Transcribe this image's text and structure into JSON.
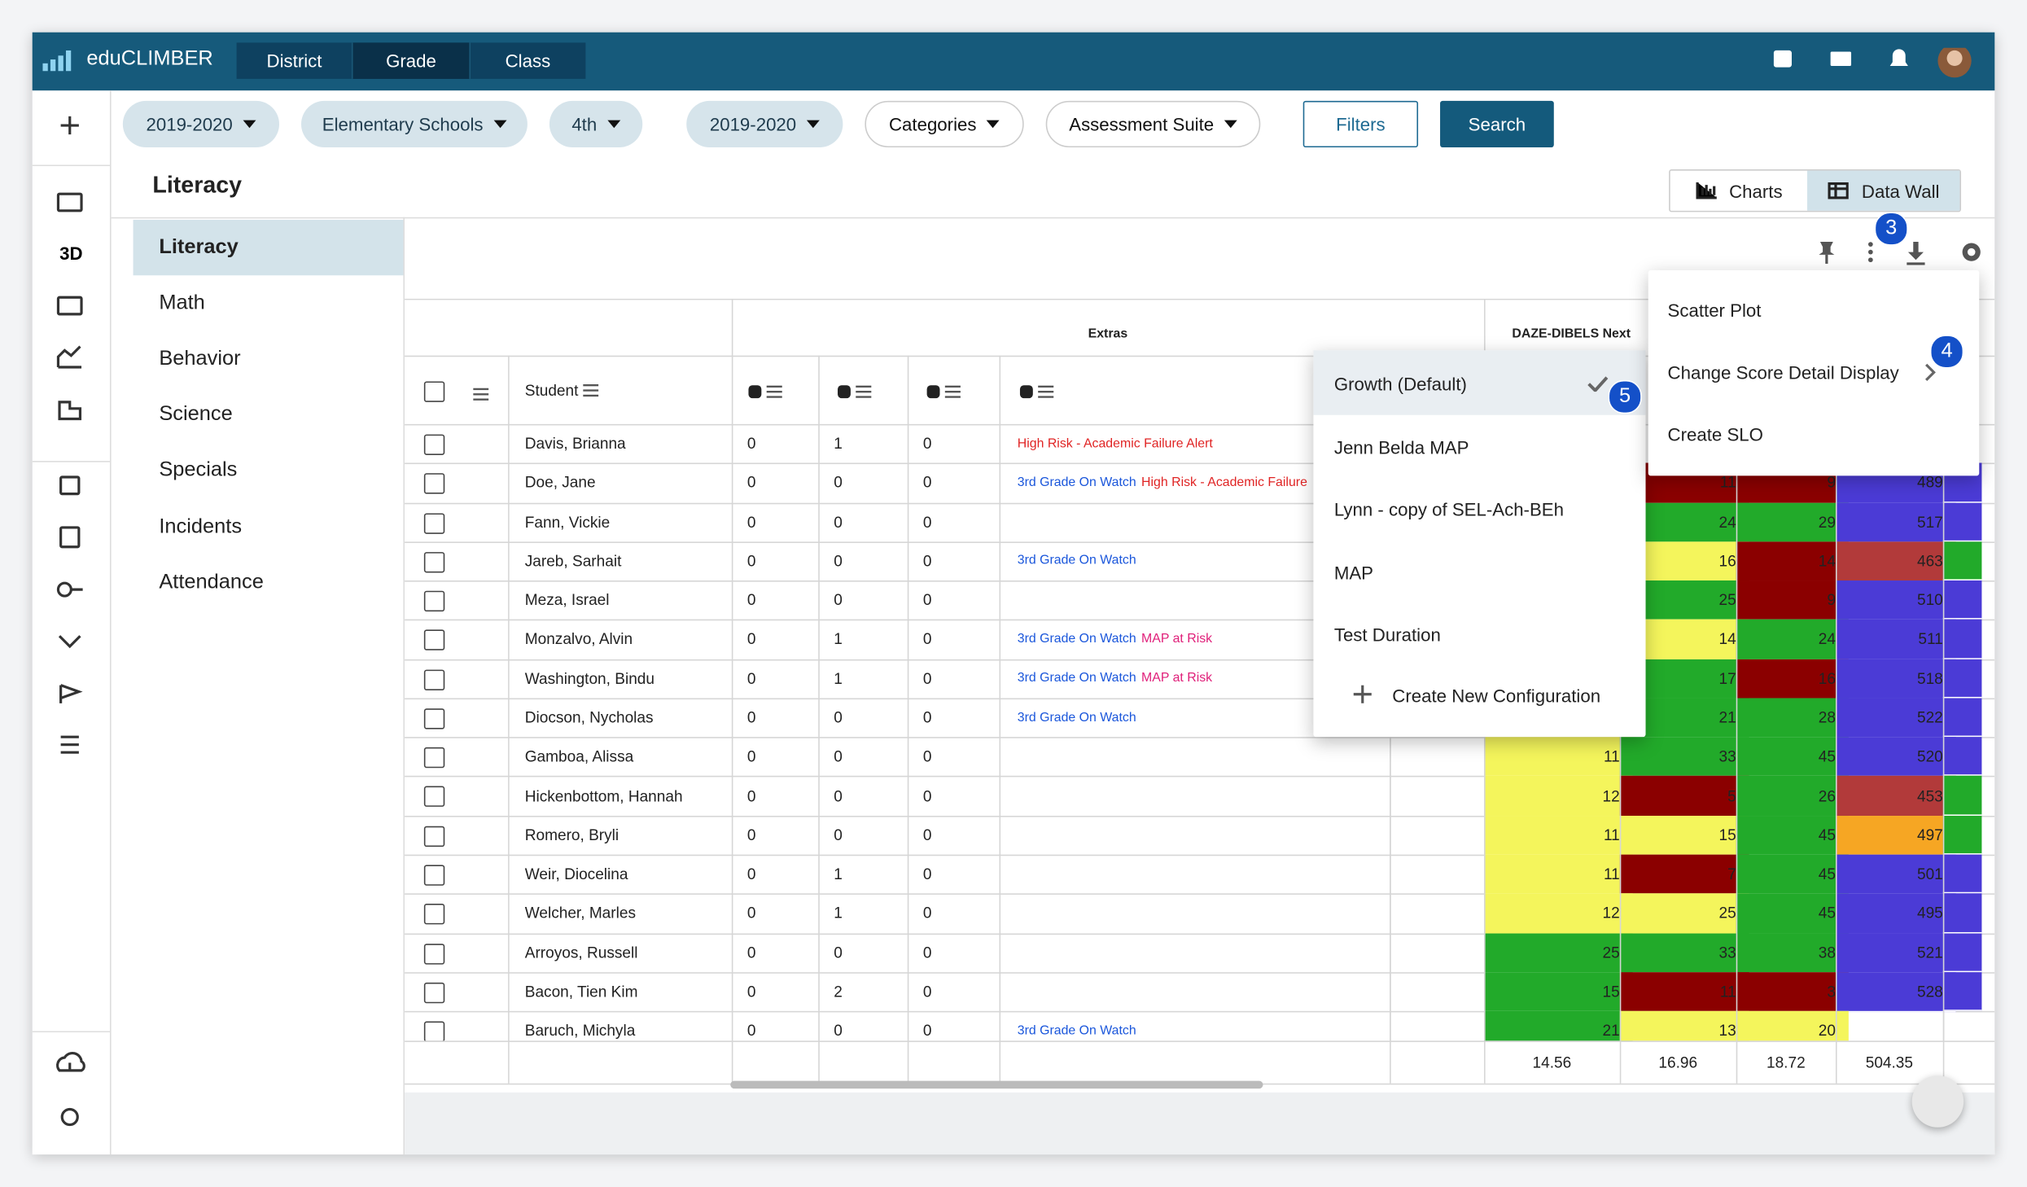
{
  "nav": {
    "brand": "eduCLIMBER",
    "tabs": [
      "District",
      "Grade",
      "Class"
    ],
    "active_tab": 1
  },
  "sidebar": {
    "label_3d": "3D"
  },
  "filters": {
    "dropdowns": [
      "2019-2020",
      "Elementary Schools",
      "4th",
      "2019-2020",
      "Categories",
      "Assessment Suite"
    ],
    "filters_button": "Filters",
    "search_button": "Search"
  },
  "page": {
    "title": "Literacy",
    "views": [
      "Charts",
      "Data Wall"
    ],
    "active_view": 1
  },
  "subjects": {
    "items": [
      "Literacy",
      "Math",
      "Behavior",
      "Science",
      "Specials",
      "Incidents",
      "Attendance"
    ],
    "active": 0
  },
  "table": {
    "groups": [
      "Extras",
      "DAZE-DIBELS Next"
    ],
    "student_header": "Student",
    "rows": [
      {
        "student": "Davis, Brianna",
        "extras": [
          0,
          1,
          0
        ],
        "tags": [
          {
            "text": "High Risk - Academic Failure Alert",
            "color": "#e02424"
          }
        ],
        "scores": [
          null,
          null,
          null,
          null
        ]
      },
      {
        "student": "Doe, Jane",
        "extras": [
          0,
          0,
          0
        ],
        "tags": [
          {
            "text": "3rd Grade On Watch",
            "color": "#1a56db"
          },
          {
            "text": "High Risk - Academic Failure",
            "color": "#e02424"
          }
        ],
        "scores": [
          null,
          {
            "value": 11,
            "color": "#8b0000"
          },
          {
            "value": 9,
            "color": "#8b0000"
          },
          {
            "value": 489,
            "color": "#4b3bd6"
          }
        ]
      },
      {
        "student": "Fann, Vickie",
        "extras": [
          0,
          0,
          0
        ],
        "tags": [],
        "scores": [
          null,
          {
            "value": 24,
            "color": "#22aa2a"
          },
          {
            "value": 29,
            "color": "#22aa2a"
          },
          {
            "value": 517,
            "color": "#4b3bd6"
          }
        ]
      },
      {
        "student": "Jareb, Sarhait",
        "extras": [
          0,
          0,
          0
        ],
        "tags": [
          {
            "text": "3rd Grade On Watch",
            "color": "#1a56db"
          }
        ],
        "scores": [
          null,
          {
            "value": 16,
            "color": "#f4f55c"
          },
          {
            "value": 14,
            "color": "#8b0000"
          },
          {
            "value": 463,
            "color": "#b23a3a"
          }
        ]
      },
      {
        "student": "Meza, Israel",
        "extras": [
          0,
          0,
          0
        ],
        "tags": [],
        "scores": [
          null,
          {
            "value": 25,
            "color": "#22aa2a"
          },
          {
            "value": 9,
            "color": "#8b0000"
          },
          {
            "value": 510,
            "color": "#4b3bd6"
          }
        ]
      },
      {
        "student": "Monzalvo, Alvin",
        "extras": [
          0,
          1,
          0
        ],
        "tags": [
          {
            "text": "3rd Grade On Watch",
            "color": "#1a56db"
          },
          {
            "text": "MAP at Risk",
            "color": "#e0207a"
          }
        ],
        "scores": [
          null,
          {
            "value": 14,
            "color": "#f4f55c"
          },
          {
            "value": 24,
            "color": "#22aa2a"
          },
          {
            "value": 511,
            "color": "#4b3bd6"
          }
        ]
      },
      {
        "student": "Washington, Bindu",
        "extras": [
          0,
          1,
          0
        ],
        "tags": [
          {
            "text": "3rd Grade On Watch",
            "color": "#1a56db"
          },
          {
            "text": "MAP at Risk",
            "color": "#e0207a"
          }
        ],
        "scores": [
          null,
          {
            "value": 17,
            "color": "#22aa2a"
          },
          {
            "value": 16,
            "color": "#8b0000"
          },
          {
            "value": 518,
            "color": "#4b3bd6"
          }
        ]
      },
      {
        "student": "Diocson, Nycholas",
        "extras": [
          0,
          0,
          0
        ],
        "tags": [
          {
            "text": "3rd Grade On Watch",
            "color": "#1a56db"
          }
        ],
        "scores": [
          null,
          {
            "value": 21,
            "color": "#22aa2a"
          },
          {
            "value": 28,
            "color": "#22aa2a"
          },
          {
            "value": 522,
            "color": "#4b3bd6"
          }
        ]
      },
      {
        "student": "Gamboa, Alissa",
        "extras": [
          0,
          0,
          0
        ],
        "tags": [],
        "scores": [
          {
            "value": 11,
            "color": "#f4f55c"
          },
          {
            "value": 33,
            "color": "#22aa2a"
          },
          {
            "value": 45,
            "color": "#22aa2a"
          },
          {
            "value": 520,
            "color": "#4b3bd6"
          }
        ]
      },
      {
        "student": "Hickenbottom, Hannah",
        "extras": [
          0,
          0,
          0
        ],
        "tags": [],
        "scores": [
          {
            "value": 12,
            "color": "#f4f55c"
          },
          {
            "value": 5,
            "color": "#8b0000"
          },
          {
            "value": 26,
            "color": "#22aa2a"
          },
          {
            "value": 453,
            "color": "#b23a3a"
          }
        ]
      },
      {
        "student": "Romero, Bryli",
        "extras": [
          0,
          0,
          0
        ],
        "tags": [],
        "scores": [
          {
            "value": 11,
            "color": "#f4f55c"
          },
          {
            "value": 15,
            "color": "#f4f55c"
          },
          {
            "value": 45,
            "color": "#22aa2a"
          },
          {
            "value": 497,
            "color": "#f6a623"
          }
        ]
      },
      {
        "student": "Weir, Diocelina",
        "extras": [
          0,
          1,
          0
        ],
        "tags": [],
        "scores": [
          {
            "value": 11,
            "color": "#f4f55c"
          },
          {
            "value": 7,
            "color": "#8b0000"
          },
          {
            "value": 45,
            "color": "#22aa2a"
          },
          {
            "value": 501,
            "color": "#4b3bd6"
          }
        ]
      },
      {
        "student": "Welcher, Marles",
        "extras": [
          0,
          1,
          0
        ],
        "tags": [],
        "scores": [
          {
            "value": 12,
            "color": "#f4f55c"
          },
          {
            "value": 25,
            "color": "#f4f55c"
          },
          {
            "value": 45,
            "color": "#22aa2a"
          },
          {
            "value": 495,
            "color": "#4b3bd6"
          }
        ]
      },
      {
        "student": "Arroyos, Russell",
        "extras": [
          0,
          0,
          0
        ],
        "tags": [],
        "scores": [
          {
            "value": 25,
            "color": "#22aa2a"
          },
          {
            "value": 33,
            "color": "#22aa2a"
          },
          {
            "value": 38,
            "color": "#22aa2a"
          },
          {
            "value": 521,
            "color": "#4b3bd6"
          }
        ]
      },
      {
        "student": "Bacon, Tien Kim",
        "extras": [
          0,
          2,
          0
        ],
        "tags": [],
        "scores": [
          {
            "value": 15,
            "color": "#22aa2a"
          },
          {
            "value": 11,
            "color": "#8b0000"
          },
          {
            "value": 3,
            "color": "#8b0000"
          },
          {
            "value": 528,
            "color": "#4b3bd6"
          }
        ]
      },
      {
        "student": "Baruch, Michyla",
        "extras": [
          0,
          0,
          0
        ],
        "tags": [
          {
            "text": "3rd Grade On Watch",
            "color": "#1a56db"
          }
        ],
        "scores": [
          {
            "value": 21,
            "color": "#22aa2a"
          },
          {
            "value": 13,
            "color": "#f4f55c"
          },
          {
            "value": 20,
            "color": "#f4f55c"
          },
          null
        ]
      }
    ],
    "averages": [
      14.56,
      16.96,
      18.72,
      504.35
    ]
  },
  "score_menu": {
    "items": [
      "Growth (Default)",
      "Jenn Belda MAP",
      "Lynn - copy of SEL-Ach-BEh",
      "MAP",
      "Test Duration"
    ],
    "selected": 0,
    "create": "Create New Configuration"
  },
  "actions_menu": {
    "items": [
      "Scatter Plot",
      "Change Score Detail Display",
      "Create SLO"
    ]
  },
  "callouts": [
    "3",
    "4",
    "5"
  ]
}
